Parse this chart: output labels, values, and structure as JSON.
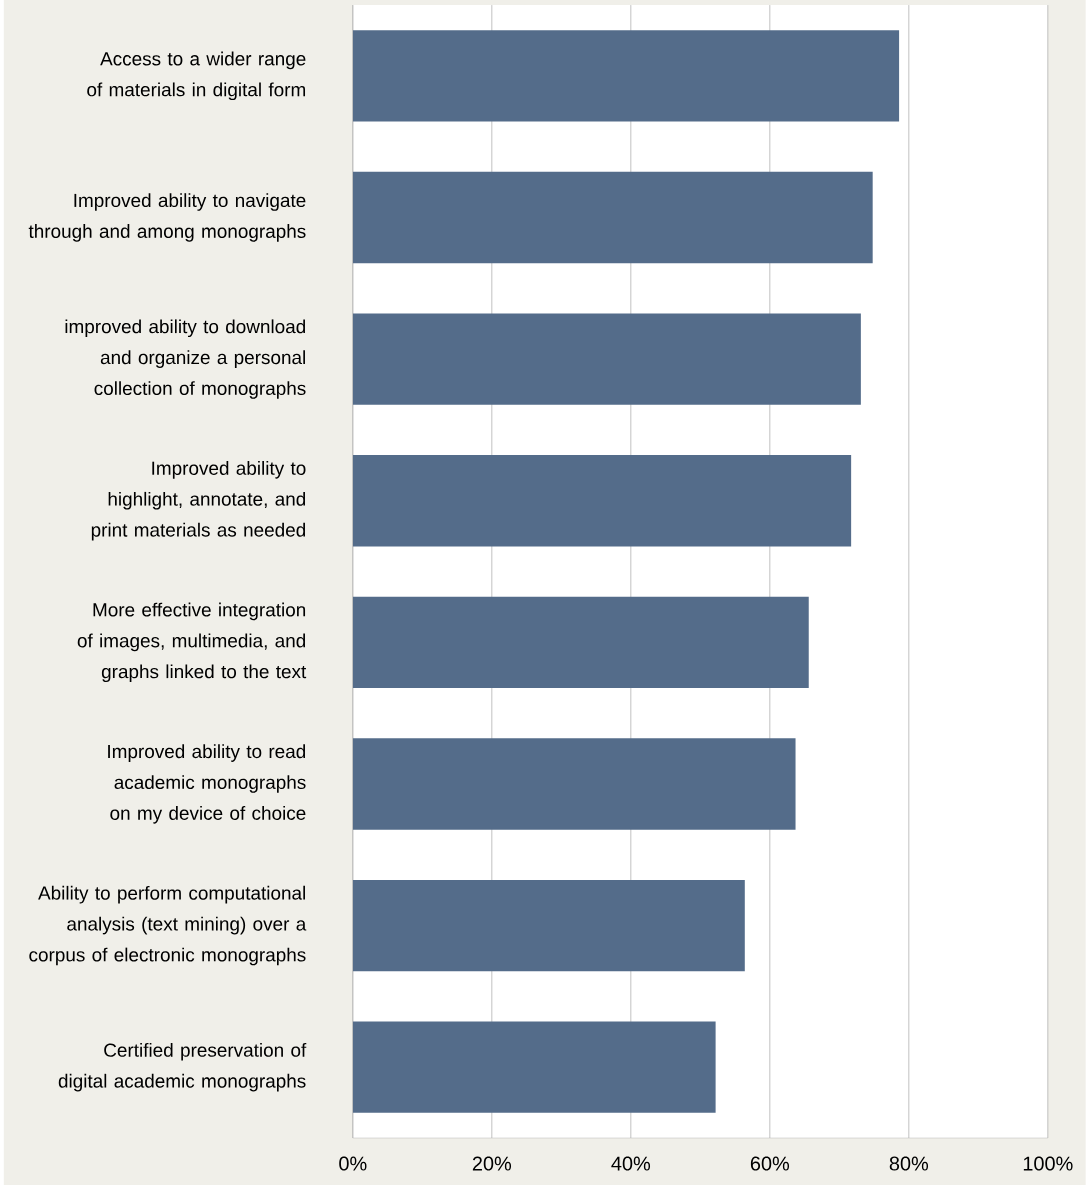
{
  "chart_data": {
    "type": "bar",
    "orientation": "horizontal",
    "categories": [
      "Access to a wider range of materials in digital form",
      "Improved ability to navigate through and among monographs",
      "improved ability to download and organize a personal collection of monographs",
      "Improved ability to highlight, annotate, and print materials as needed",
      "More effective integration of images, multimedia, and graphs linked to the text",
      "Improved ability to read academic monographs on my device of choice",
      "Ability to perform computational analysis (text mining) over a corpus of electronic monographs",
      "Certified preservation of digital academic monographs"
    ],
    "values": [
      78.6,
      74.8,
      73.1,
      71.7,
      65.6,
      63.7,
      56.4,
      52.2
    ],
    "color": "#546c8a",
    "xlim": [
      0,
      100
    ],
    "xticks": [
      {
        "value": 0,
        "label": "0%"
      },
      {
        "value": 20,
        "label": "20%"
      },
      {
        "value": 40,
        "label": "40%"
      },
      {
        "value": 60,
        "label": "60%"
      },
      {
        "value": 80,
        "label": "80%"
      },
      {
        "value": 100,
        "label": "100%"
      }
    ],
    "grid": "x"
  }
}
